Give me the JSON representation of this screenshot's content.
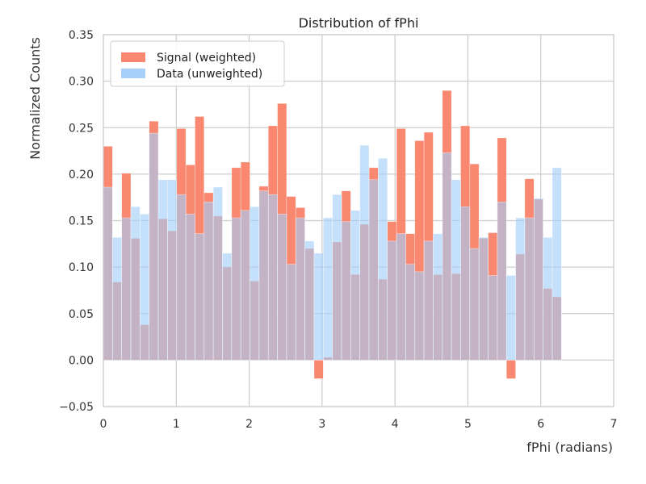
{
  "chart_data": {
    "type": "bar",
    "title": "Distribution of fPhi",
    "xlabel": "fPhi (radians)",
    "ylabel": "Normalized Counts",
    "xlim": [
      0,
      7
    ],
    "ylim": [
      -0.05,
      0.35
    ],
    "grid": true,
    "legend_position": "top-left",
    "bin_width": 0.1257,
    "x_ticks": [
      "0",
      "1",
      "2",
      "3",
      "4",
      "5",
      "6",
      "7"
    ],
    "y_ticks": [
      "−0.05",
      "0.00",
      "0.05",
      "0.10",
      "0.15",
      "0.20",
      "0.25",
      "0.30",
      "0.35"
    ],
    "bin_starts": [
      0,
      0.1257,
      0.2513,
      0.377,
      0.5027,
      0.6283,
      0.754,
      0.8796,
      1.0053,
      1.131,
      1.2566,
      1.3823,
      1.508,
      1.6336,
      1.7593,
      1.885,
      2.0106,
      2.1363,
      2.2619,
      2.3876,
      2.5133,
      2.6389,
      2.7646,
      2.8903,
      3.0159,
      3.1416,
      3.2673,
      3.3929,
      3.5186,
      3.6442,
      3.7699,
      3.8956,
      4.0212,
      4.1469,
      4.2726,
      4.3982,
      4.5239,
      4.6496,
      4.7752,
      4.9009,
      5.0265,
      5.1522,
      5.2779,
      5.4035,
      5.5292,
      5.6549,
      5.7805,
      5.9062,
      6.0319,
      6.1575
    ],
    "series": [
      {
        "name": "Signal (weighted)",
        "color": "#fa8268",
        "values": [
          0.23,
          0.084,
          0.201,
          0.131,
          0.038,
          0.257,
          0.152,
          0.139,
          0.249,
          0.21,
          0.262,
          0.18,
          0.155,
          0.1,
          0.207,
          0.213,
          0.085,
          0.187,
          0.252,
          0.276,
          0.176,
          0.164,
          0.12,
          -0.02,
          0.003,
          0.127,
          0.182,
          0.092,
          0.146,
          0.207,
          0.087,
          0.149,
          0.249,
          0.136,
          0.236,
          0.245,
          0.092,
          0.29,
          0.093,
          0.252,
          0.211,
          0.131,
          0.137,
          0.239,
          -0.02,
          0.114,
          0.195,
          0.173,
          0.077,
          0.068
        ]
      },
      {
        "name": "Data (unweighted)",
        "color": "#a1cdf9",
        "values": [
          0.186,
          0.132,
          0.153,
          0.165,
          0.157,
          0.244,
          0.194,
          0.194,
          0.178,
          0.157,
          0.136,
          0.17,
          0.186,
          0.115,
          0.153,
          0.161,
          0.165,
          0.182,
          0.178,
          0.157,
          0.103,
          0.153,
          0.128,
          0.115,
          0.153,
          0.178,
          0.149,
          0.161,
          0.231,
          0.194,
          0.217,
          0.128,
          0.136,
          0.103,
          0.095,
          0.128,
          0.136,
          0.223,
          0.194,
          0.165,
          0.12,
          0.132,
          0.091,
          0.17,
          0.091,
          0.153,
          0.153,
          0.174,
          0.132,
          0.207
        ]
      }
    ]
  }
}
